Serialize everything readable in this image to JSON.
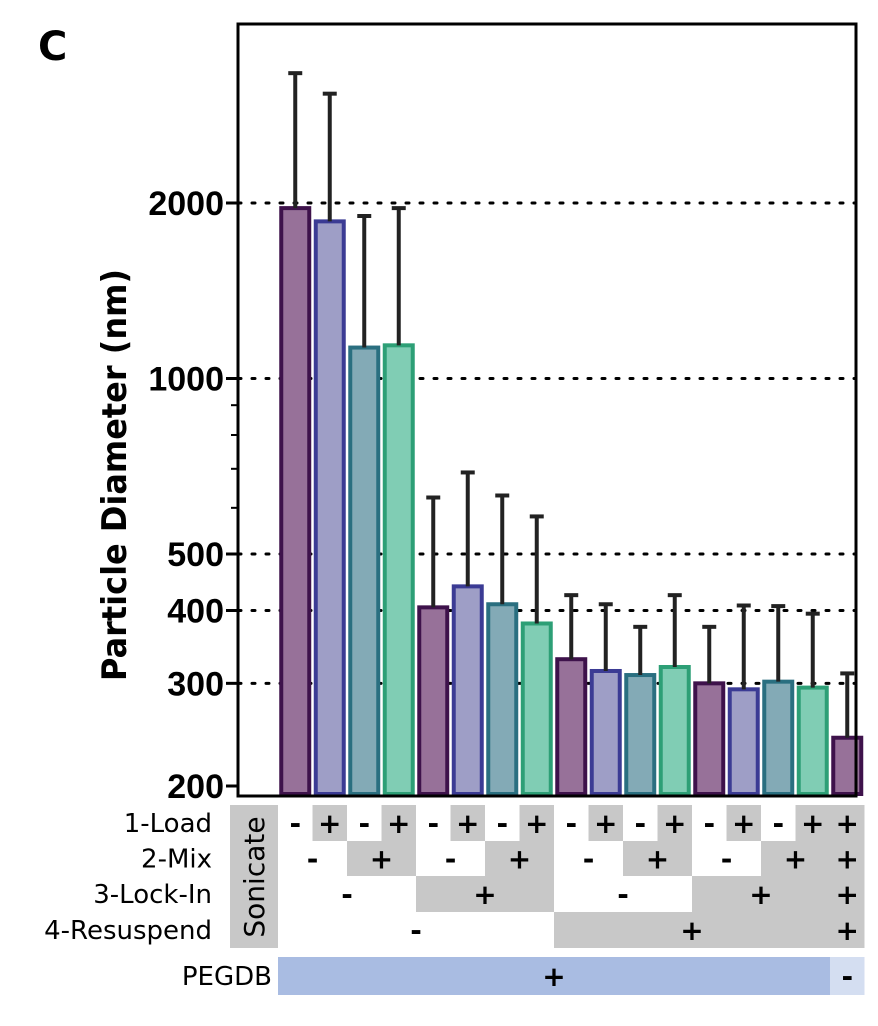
{
  "panel_letter": "C",
  "chart_data": {
    "type": "bar",
    "ylabel": "Particle Diameter (nm)",
    "yscale": "log",
    "ylim": [
      200,
      3500
    ],
    "ytick_labels": [
      "200",
      "300",
      "400",
      "500",
      "1000",
      "2000"
    ],
    "yticks": [
      200,
      300,
      400,
      500,
      1000,
      2000
    ],
    "minor_yticks": [
      600,
      700,
      800,
      900
    ],
    "gridlines_at": [
      300,
      400,
      500,
      1000,
      2000
    ],
    "grid": "dotted horizontal",
    "colors": {
      "1": {
        "fill": "#977199",
        "stroke": "#3e124b"
      },
      "2": {
        "fill": "#9e9ec6",
        "stroke": "#3b3b94"
      },
      "3": {
        "fill": "#83aab6",
        "stroke": "#2a6f80"
      },
      "4": {
        "fill": "#80cdb4",
        "stroke": "#2d9f76"
      }
    },
    "bars": [
      {
        "value": 1960,
        "error": 1380,
        "color": "1"
      },
      {
        "value": 1860,
        "error": 1220,
        "color": "2"
      },
      {
        "value": 1130,
        "error": 770,
        "color": "3"
      },
      {
        "value": 1140,
        "error": 820,
        "color": "4"
      },
      {
        "value": 405,
        "error": 220,
        "color": "1"
      },
      {
        "value": 440,
        "error": 250,
        "color": "2"
      },
      {
        "value": 410,
        "error": 220,
        "color": "3"
      },
      {
        "value": 380,
        "error": 200,
        "color": "4"
      },
      {
        "value": 330,
        "error": 95,
        "color": "1"
      },
      {
        "value": 315,
        "error": 95,
        "color": "2"
      },
      {
        "value": 310,
        "error": 65,
        "color": "3"
      },
      {
        "value": 320,
        "error": 105,
        "color": "4"
      },
      {
        "value": 300,
        "error": 75,
        "color": "1"
      },
      {
        "value": 293,
        "error": 115,
        "color": "2"
      },
      {
        "value": 302,
        "error": 105,
        "color": "3"
      },
      {
        "value": 295,
        "error": 100,
        "color": "4"
      },
      {
        "value": 242,
        "error": 70,
        "color": "1"
      }
    ]
  },
  "condition_table": {
    "side_label": "Sonicate",
    "rows": [
      {
        "label": "1-Load",
        "cells": [
          "-",
          "+",
          "-",
          "+",
          "-",
          "+",
          "-",
          "+",
          "-",
          "+",
          "-",
          "+",
          "-",
          "+",
          "-",
          "+",
          "+"
        ],
        "shaded": [
          false,
          true,
          false,
          true,
          false,
          true,
          false,
          true,
          false,
          true,
          false,
          true,
          false,
          true,
          false,
          true,
          true
        ]
      },
      {
        "label": "2-Mix",
        "groups": [
          {
            "start": 0,
            "span": 2,
            "sign": "-",
            "shaded": false
          },
          {
            "start": 2,
            "span": 2,
            "sign": "+",
            "shaded": true
          },
          {
            "start": 4,
            "span": 2,
            "sign": "-",
            "shaded": false
          },
          {
            "start": 6,
            "span": 2,
            "sign": "+",
            "shaded": true
          },
          {
            "start": 8,
            "span": 2,
            "sign": "-",
            "shaded": false
          },
          {
            "start": 10,
            "span": 2,
            "sign": "+",
            "shaded": true
          },
          {
            "start": 12,
            "span": 2,
            "sign": "-",
            "shaded": false
          },
          {
            "start": 14,
            "span": 2,
            "sign": "+",
            "shaded": true
          },
          {
            "start": 16,
            "span": 1,
            "sign": "+",
            "shaded": true
          }
        ]
      },
      {
        "label": "3-Lock-In",
        "groups": [
          {
            "start": 0,
            "span": 4,
            "sign": "-",
            "shaded": false
          },
          {
            "start": 4,
            "span": 4,
            "sign": "+",
            "shaded": true
          },
          {
            "start": 8,
            "span": 4,
            "sign": "-",
            "shaded": false
          },
          {
            "start": 12,
            "span": 4,
            "sign": "+",
            "shaded": true
          },
          {
            "start": 16,
            "span": 1,
            "sign": "+",
            "shaded": true
          }
        ]
      },
      {
        "label": "4-Resuspend",
        "groups": [
          {
            "start": 0,
            "span": 8,
            "sign": "-",
            "shaded": false
          },
          {
            "start": 8,
            "span": 8,
            "sign": "+",
            "shaded": true
          },
          {
            "start": 16,
            "span": 1,
            "sign": "+",
            "shaded": true
          }
        ]
      }
    ],
    "pegdb": {
      "label": "PEGDB",
      "groups": [
        {
          "start": 0,
          "span": 16,
          "sign": "+",
          "color": "#a9bce2"
        },
        {
          "start": 16,
          "span": 1,
          "sign": "-",
          "color": "#d4def1"
        }
      ]
    },
    "shade_color": "#c8c8c8"
  }
}
